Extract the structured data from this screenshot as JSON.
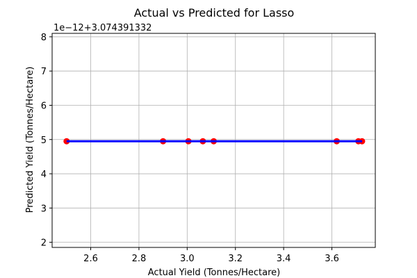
{
  "chart_data": {
    "type": "scatter",
    "title": "Actual vs Predicted for Lasso",
    "xlabel": "Actual Yield (Tonnes/Hectare)",
    "ylabel": "Predicted Yield (Tonnes/Hectare)",
    "y_offset_label": "1e−12+3.074391332",
    "xlim": [
      2.44,
      3.78
    ],
    "ylim": [
      1.85,
      8.1
    ],
    "xticks": [
      2.6,
      2.8,
      3.0,
      3.2,
      3.4,
      3.6
    ],
    "xtick_labels": [
      "2.6",
      "2.8",
      "3.0",
      "3.2",
      "3.4",
      "3.6"
    ],
    "yticks": [
      2,
      3,
      4,
      5,
      6,
      7,
      8
    ],
    "ytick_labels": [
      "2",
      "3",
      "4",
      "5",
      "6",
      "7",
      "8"
    ],
    "grid": true,
    "series": [
      {
        "kind": "scatter",
        "color": "#ff0000",
        "x": [
          2.5,
          2.9,
          3.005,
          3.065,
          3.11,
          3.62,
          3.71,
          3.725
        ],
        "y": [
          4.95,
          4.95,
          4.95,
          4.95,
          4.95,
          4.95,
          4.95,
          4.95
        ]
      },
      {
        "kind": "line",
        "color": "#0000ff",
        "x": [
          2.5,
          3.725
        ],
        "y": [
          4.95,
          4.95
        ]
      }
    ]
  }
}
